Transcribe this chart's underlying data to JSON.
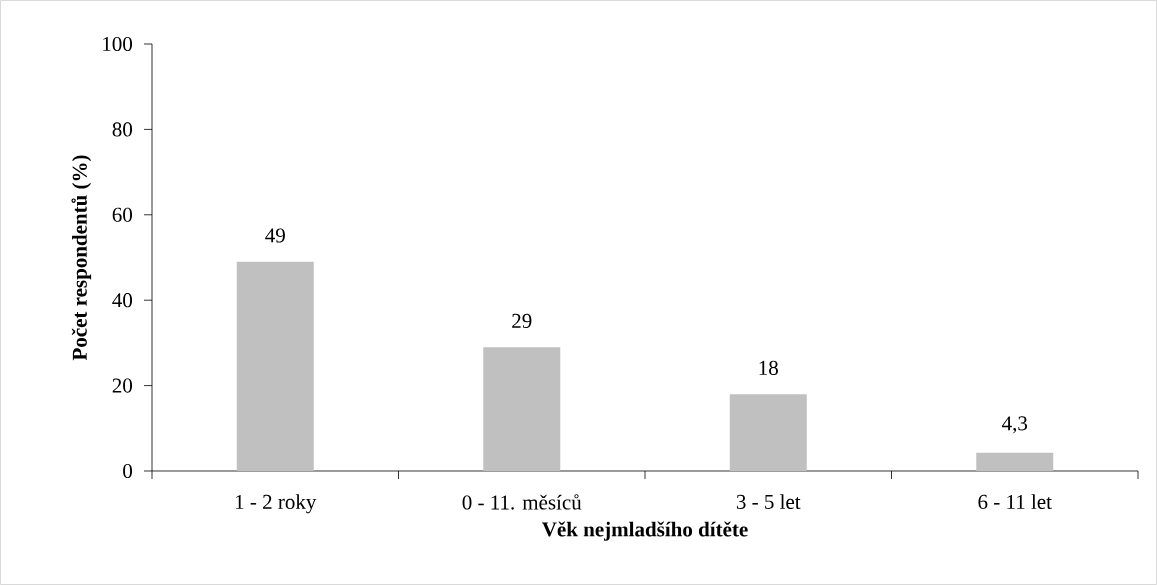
{
  "chart_data": {
    "type": "bar",
    "xlabel": "Věk nejmladšího dítěte",
    "ylabel": "Počet respondentů (%)",
    "categories": [
      "1 - 2 roky",
      "0 - 11. měsíců",
      "3 - 5 let",
      "6 - 11 let"
    ],
    "values": [
      49,
      29,
      18,
      4.3
    ],
    "value_labels": [
      "49",
      "29",
      "18",
      "4,3"
    ],
    "color": "#c0c0c0",
    "ylim": [
      0,
      100
    ],
    "yticks": [
      0,
      20,
      40,
      60,
      80,
      100
    ],
    "grid": false
  }
}
